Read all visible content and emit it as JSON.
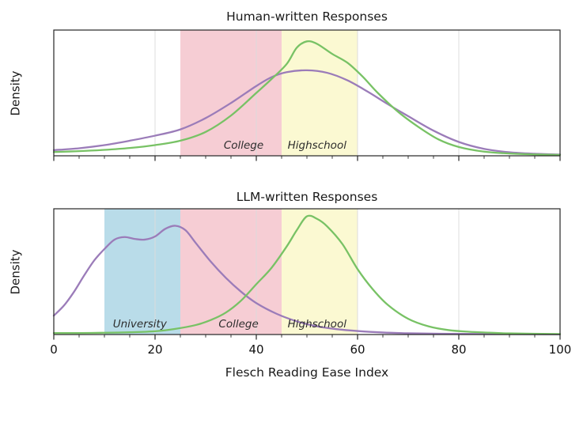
{
  "chart_data": [
    {
      "type": "line",
      "subtype": "kde-density",
      "title": "Human-written Responses",
      "ylabel": "Density",
      "xlim": [
        0,
        100
      ],
      "xticks": [
        0,
        20,
        40,
        60,
        80,
        100
      ],
      "minor_step": 5,
      "show_xtick_labels": false,
      "grid": "vertical-major",
      "bands": [
        {
          "label": "College",
          "from": 25,
          "to": 45,
          "color": "#f6cdd4",
          "label_x": 37.5
        },
        {
          "label": "Highschool",
          "from": 45,
          "to": 60,
          "color": "#fbf9d2",
          "label_x": 52
        }
      ],
      "series": [
        {
          "name": "human-purple",
          "color": "#9b7cb9",
          "x": [
            0,
            5,
            10,
            15,
            20,
            25,
            30,
            35,
            40,
            43,
            46,
            50,
            54,
            58,
            62,
            66,
            70,
            75,
            80,
            85,
            90,
            95,
            100
          ],
          "y": [
            0.045,
            0.06,
            0.085,
            0.12,
            0.16,
            0.21,
            0.3,
            0.42,
            0.555,
            0.625,
            0.665,
            0.68,
            0.66,
            0.6,
            0.51,
            0.41,
            0.315,
            0.2,
            0.11,
            0.055,
            0.028,
            0.016,
            0.01
          ]
        },
        {
          "name": "human-green",
          "color": "#78c265",
          "x": [
            0,
            5,
            10,
            15,
            20,
            25,
            30,
            35,
            40,
            43,
            46,
            48,
            50,
            52,
            55,
            58,
            61,
            64,
            68,
            72,
            76,
            80,
            85,
            90,
            95,
            100
          ],
          "y": [
            0.03,
            0.037,
            0.047,
            0.062,
            0.085,
            0.12,
            0.19,
            0.32,
            0.5,
            0.61,
            0.73,
            0.86,
            0.91,
            0.89,
            0.81,
            0.74,
            0.63,
            0.5,
            0.35,
            0.23,
            0.13,
            0.07,
            0.033,
            0.018,
            0.011,
            0.007
          ]
        }
      ]
    },
    {
      "type": "line",
      "subtype": "kde-density",
      "title": "LLM-written Responses",
      "ylabel": "Density",
      "xlabel": "Flesch Reading Ease Index",
      "xlim": [
        0,
        100
      ],
      "xticks": [
        0,
        20,
        40,
        60,
        80,
        100
      ],
      "minor_step": 5,
      "show_xtick_labels": true,
      "grid": "vertical-major",
      "bands": [
        {
          "label": "University",
          "from": 10,
          "to": 25,
          "color": "#b9dce9",
          "label_x": 17
        },
        {
          "label": "College",
          "from": 25,
          "to": 45,
          "color": "#f6cdd4",
          "label_x": 36.5
        },
        {
          "label": "Highschool",
          "from": 45,
          "to": 60,
          "color": "#fbf9d2",
          "label_x": 52
        }
      ],
      "series": [
        {
          "name": "llm-purple",
          "color": "#9b7cb9",
          "x": [
            0,
            2,
            4,
            6,
            8,
            10,
            12,
            14,
            16,
            18,
            20,
            22,
            24,
            26,
            28,
            31,
            34,
            37,
            40,
            44,
            48,
            52,
            56,
            60,
            65,
            70,
            75,
            80,
            90,
            100
          ],
          "y": [
            0.15,
            0.23,
            0.34,
            0.47,
            0.59,
            0.68,
            0.755,
            0.775,
            0.76,
            0.755,
            0.78,
            0.84,
            0.865,
            0.83,
            0.73,
            0.58,
            0.45,
            0.34,
            0.25,
            0.165,
            0.105,
            0.065,
            0.042,
            0.028,
            0.016,
            0.01,
            0.007,
            0.005,
            0.003,
            0.002
          ]
        },
        {
          "name": "llm-green",
          "color": "#78c265",
          "x": [
            0,
            5,
            10,
            15,
            20,
            24,
            28,
            31,
            34,
            37,
            40,
            43,
            46,
            48,
            50,
            52,
            54,
            57,
            60,
            63,
            66,
            70,
            74,
            78,
            82,
            86,
            90,
            100
          ],
          "y": [
            0.012,
            0.012,
            0.014,
            0.018,
            0.026,
            0.045,
            0.075,
            0.115,
            0.175,
            0.27,
            0.4,
            0.53,
            0.7,
            0.83,
            0.94,
            0.92,
            0.86,
            0.72,
            0.52,
            0.36,
            0.235,
            0.125,
            0.065,
            0.035,
            0.022,
            0.015,
            0.009,
            0.004
          ]
        }
      ]
    }
  ]
}
